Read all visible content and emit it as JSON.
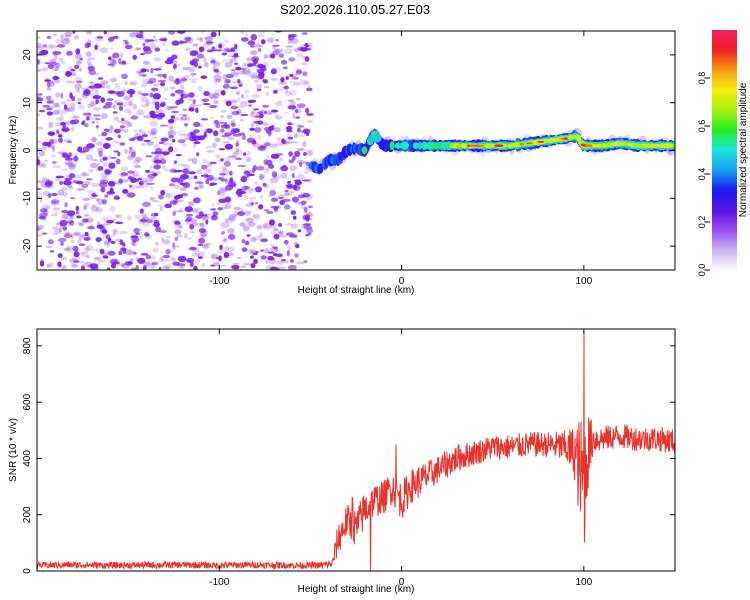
{
  "title": "S202.2026.110.05.27.E03",
  "colors": {
    "line": "#e8322b",
    "scatter": "#7b20e8",
    "axis": "#000000"
  },
  "colorbar": {
    "label": "Normalized spectral amplitude",
    "ticks": [
      "0.0",
      "0.2",
      "0.4",
      "0.6",
      "0.8"
    ],
    "tick_values": [
      0,
      0.2,
      0.4,
      0.6,
      0.8
    ],
    "range": [
      0,
      1
    ],
    "stops": [
      "#ffffff",
      "#c9b4f2",
      "#9b4cf0",
      "#5a14e0",
      "#1a1af0",
      "#16a0f0",
      "#19e8e0",
      "#22f020",
      "#a8f010",
      "#f7ee10",
      "#f79a10",
      "#f02020",
      "#f0206a"
    ]
  },
  "chart_data": [
    {
      "type": "heatmap",
      "title": "S202.2026.110.05.27.E03",
      "xlabel": "Height of straight line (km)",
      "ylabel": "Frequency (Hz)",
      "xlim": [
        -200,
        150
      ],
      "ylim": [
        -25,
        25
      ],
      "xticks": [
        -100,
        0,
        100
      ],
      "xtick_labels": [
        "-100",
        "0",
        "100"
      ],
      "yticks": [
        20,
        10,
        0,
        -10,
        -20
      ],
      "ytick_labels": [
        "20",
        "10",
        "0",
        "-10",
        "-20"
      ],
      "noise_region": {
        "x": [
          -200,
          -50
        ],
        "y": [
          -25,
          25
        ]
      },
      "signal_track": [
        {
          "x": -50,
          "y": -3,
          "amp": 0.35
        },
        {
          "x": -45,
          "y": -4,
          "amp": 0.3
        },
        {
          "x": -40,
          "y": -2,
          "amp": 0.35
        },
        {
          "x": -35,
          "y": -2,
          "amp": 0.4
        },
        {
          "x": -30,
          "y": 0,
          "amp": 0.35
        },
        {
          "x": -25,
          "y": 0.5,
          "amp": 0.45
        },
        {
          "x": -20,
          "y": 0,
          "amp": 0.4
        },
        {
          "x": -15,
          "y": 3.5,
          "amp": 0.45
        },
        {
          "x": -10,
          "y": 1,
          "amp": 0.4
        },
        {
          "x": 0,
          "y": 1,
          "amp": 0.45
        },
        {
          "x": 10,
          "y": 1,
          "amp": 0.5
        },
        {
          "x": 20,
          "y": 1,
          "amp": 0.55
        },
        {
          "x": 30,
          "y": 1,
          "amp": 0.7
        },
        {
          "x": 40,
          "y": 1,
          "amp": 0.85
        },
        {
          "x": 50,
          "y": 1,
          "amp": 0.8
        },
        {
          "x": 60,
          "y": 1,
          "amp": 0.7
        },
        {
          "x": 70,
          "y": 1.5,
          "amp": 0.85
        },
        {
          "x": 80,
          "y": 2,
          "amp": 0.75
        },
        {
          "x": 90,
          "y": 2.5,
          "amp": 0.8
        },
        {
          "x": 96,
          "y": 3,
          "amp": 0.6
        },
        {
          "x": 100,
          "y": 1,
          "amp": 0.85
        },
        {
          "x": 110,
          "y": 1,
          "amp": 0.7
        },
        {
          "x": 120,
          "y": 1.5,
          "amp": 0.75
        },
        {
          "x": 130,
          "y": 1,
          "amp": 0.65
        },
        {
          "x": 140,
          "y": 1,
          "amp": 0.7
        },
        {
          "x": 150,
          "y": 1,
          "amp": 0.7
        }
      ]
    },
    {
      "type": "line",
      "xlabel": "Height of straight line (km)",
      "ylabel": "SNR (10 * v/v)",
      "xlim": [
        -200,
        150
      ],
      "ylim": [
        0,
        860
      ],
      "xticks": [
        -100,
        0,
        100
      ],
      "xtick_labels": [
        "-100",
        "0",
        "100"
      ],
      "yticks": [
        0,
        200,
        400,
        600,
        800
      ],
      "ytick_labels": [
        "0",
        "200",
        "400",
        "600",
        "800"
      ],
      "series": [
        {
          "name": "SNR",
          "x": [
            -200,
            -180,
            -160,
            -140,
            -120,
            -100,
            -80,
            -60,
            -45,
            -38,
            -35,
            -30,
            -25,
            -20,
            -15,
            -10,
            -5,
            0,
            5,
            10,
            20,
            30,
            40,
            50,
            60,
            70,
            80,
            90,
            95,
            98,
            100,
            102,
            105,
            110,
            120,
            130,
            140,
            150
          ],
          "values": [
            20,
            22,
            20,
            21,
            22,
            20,
            22,
            20,
            20,
            25,
            110,
            180,
            150,
            220,
            250,
            260,
            300,
            250,
            300,
            320,
            360,
            400,
            420,
            440,
            440,
            450,
            450,
            440,
            420,
            350,
            300,
            420,
            470,
            470,
            480,
            470,
            470,
            460
          ],
          "noise": [
            12,
            12,
            12,
            12,
            12,
            12,
            12,
            12,
            12,
            15,
            60,
            60,
            70,
            70,
            60,
            60,
            60,
            70,
            60,
            60,
            50,
            50,
            45,
            45,
            45,
            45,
            45,
            60,
            100,
            200,
            250,
            150,
            60,
            45,
            45,
            45,
            45,
            45
          ]
        }
      ],
      "spikes": [
        {
          "x": -27,
          "y": 260
        },
        {
          "x": -17,
          "y": 0
        },
        {
          "x": -3,
          "y": 450
        },
        {
          "x": 100,
          "y": 850
        },
        {
          "x": 100.6,
          "y": 160
        }
      ]
    }
  ]
}
